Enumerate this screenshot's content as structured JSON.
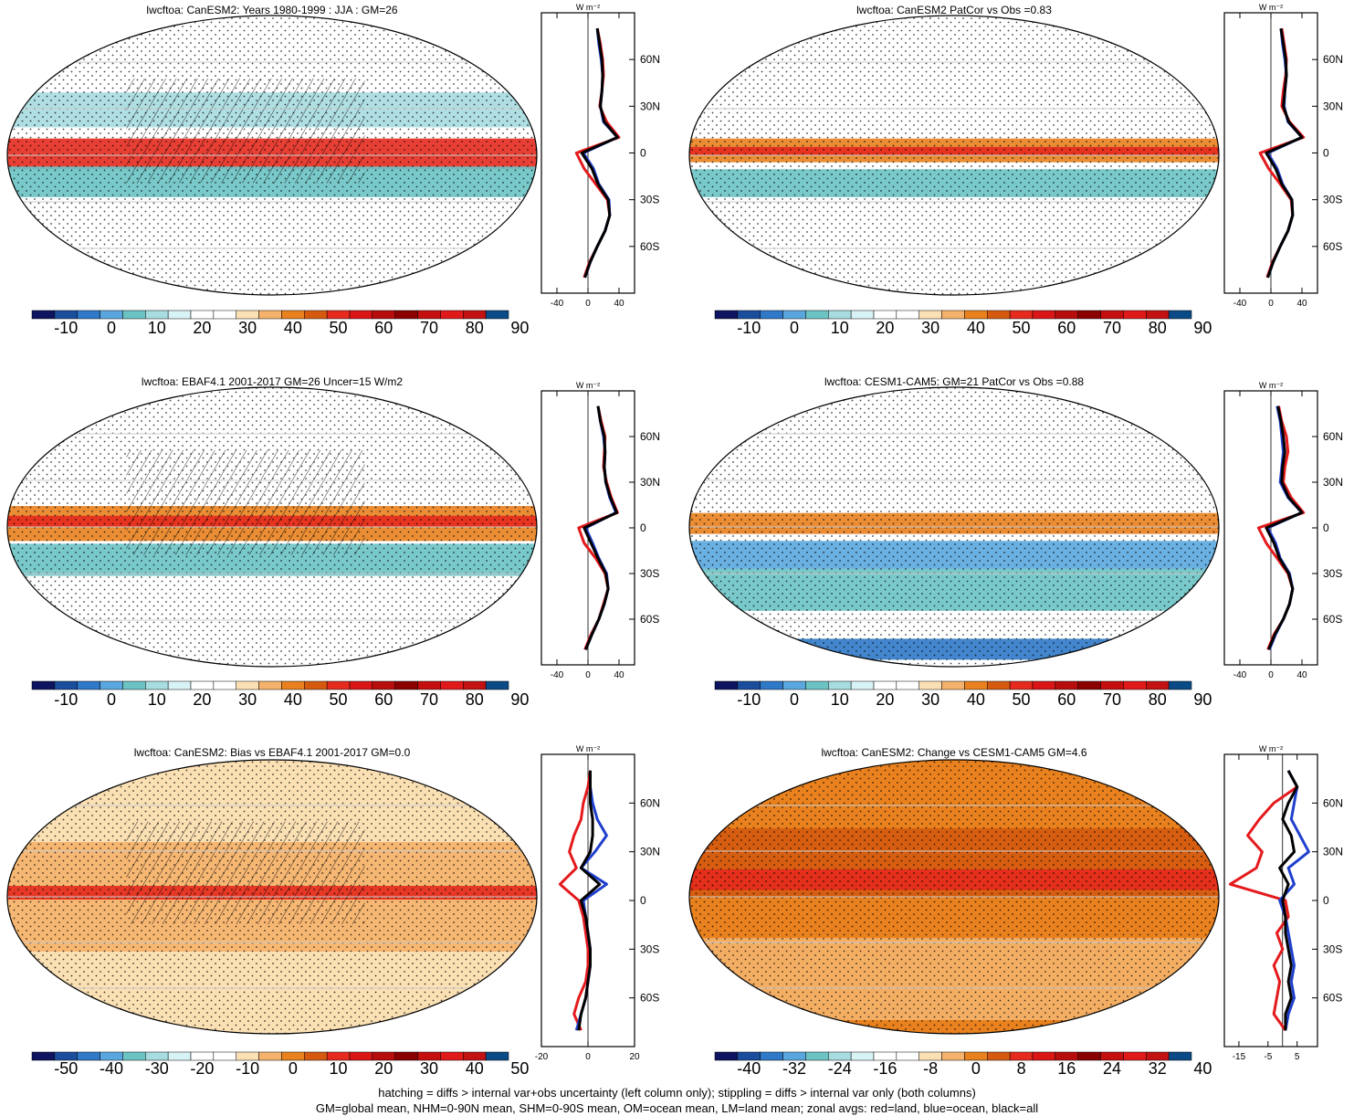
{
  "footer": {
    "line1": "hatching = diffs > internal var+obs uncertainty (left column only); stippling = diffs > internal var only (both columns)",
    "line2": "GM=global mean, NHM=0-90N mean, SHM=0-90S mean, OM=ocean mean, LM=land mean; zonal avgs: red=land, blue=ocean, black=all"
  },
  "colors": {
    "zonal_land": "#e41a1c",
    "zonal_ocean": "#1f3fcc",
    "zonal_all": "#000000",
    "palette": [
      "#0e1460",
      "#1a4e9c",
      "#2f79c8",
      "#5aa7df",
      "#6cc3c4",
      "#a7dce0",
      "#d8f3f5",
      "#ffffff",
      "#ffffff",
      "#fbe0b4",
      "#f5b26c",
      "#e8811e",
      "#d55a10",
      "#e62a1e",
      "#d91515",
      "#b80d0d",
      "#8a0000",
      "#c50f0f",
      "#e01919",
      "#c21212",
      "#0a4a86"
    ]
  },
  "chart_data": [
    {
      "type": "heatmap",
      "title": "lwcftoa: CanESM2: Years 1980-1999 : JJA : GM=26",
      "colorbar": {
        "ticks": [
          "-10",
          "0",
          "10",
          "20",
          "30",
          "40",
          "50",
          "60",
          "70",
          "80",
          "90"
        ]
      },
      "zonal_panel": {
        "units": "W m⁻²",
        "xticks": [
          "-40",
          "0",
          "40"
        ],
        "xlim": [
          -60,
          60
        ],
        "lat_ticks": [
          "60N",
          "30N",
          "0",
          "30S",
          "60S"
        ],
        "lat": [
          80,
          70,
          60,
          50,
          40,
          30,
          20,
          10,
          0,
          -10,
          -20,
          -30,
          -40,
          -50,
          -60,
          -70,
          -80
        ],
        "land": [
          12,
          16,
          19,
          20,
          18,
          15,
          24,
          40,
          -15,
          -5,
          10,
          25,
          28,
          22,
          12,
          2,
          -5
        ],
        "ocean": [
          12,
          14,
          17,
          19,
          18,
          16,
          20,
          38,
          -6,
          7,
          14,
          27,
          28,
          22,
          12,
          3,
          -4
        ],
        "all": [
          12,
          15,
          18,
          19,
          18,
          16,
          21,
          38,
          -8,
          5,
          13,
          26,
          28,
          22,
          12,
          3,
          -4
        ]
      },
      "hatching": true
    },
    {
      "type": "heatmap",
      "title": "lwcftoa: CanESM2 PatCor vs Obs =0.83",
      "colorbar": {
        "ticks": [
          "-10",
          "0",
          "10",
          "20",
          "30",
          "40",
          "50",
          "60",
          "70",
          "80",
          "90"
        ]
      },
      "zonal_panel": {
        "units": "W m⁻²",
        "xticks": [
          "-40",
          "0",
          "40"
        ],
        "xlim": [
          -60,
          60
        ],
        "lat_ticks": [
          "60N",
          "30N",
          "0",
          "30S",
          "60S"
        ],
        "lat": [
          80,
          70,
          60,
          50,
          40,
          30,
          20,
          10,
          0,
          -10,
          -20,
          -30,
          -40,
          -50,
          -60,
          -70,
          -80
        ],
        "land": [
          14,
          17,
          20,
          19,
          16,
          14,
          24,
          42,
          -14,
          -3,
          12,
          26,
          28,
          22,
          12,
          2,
          -5
        ],
        "ocean": [
          13,
          15,
          18,
          20,
          18,
          17,
          22,
          40,
          -4,
          8,
          15,
          27,
          28,
          22,
          12,
          3,
          -4
        ],
        "all": [
          13,
          16,
          19,
          20,
          18,
          16,
          23,
          40,
          -6,
          6,
          14,
          27,
          28,
          22,
          12,
          3,
          -4
        ]
      },
      "hatching": false
    },
    {
      "type": "heatmap",
      "title": "lwcftoa: EBAF4.1 2001-2017 GM=26 Uncer=15 W/m2",
      "colorbar": {
        "ticks": [
          "-10",
          "0",
          "10",
          "20",
          "30",
          "40",
          "50",
          "60",
          "70",
          "80",
          "90"
        ]
      },
      "zonal_panel": {
        "units": "W m⁻²",
        "xticks": [
          "-40",
          "0",
          "40"
        ],
        "xlim": [
          -60,
          60
        ],
        "lat_ticks": [
          "60N",
          "30N",
          "0",
          "30S",
          "60S"
        ],
        "lat": [
          80,
          70,
          60,
          50,
          40,
          30,
          20,
          10,
          0,
          -10,
          -20,
          -30,
          -40,
          -50,
          -60,
          -70,
          -80
        ],
        "land": [
          13,
          17,
          22,
          21,
          20,
          24,
          30,
          38,
          -12,
          -5,
          10,
          22,
          26,
          20,
          14,
          4,
          -4
        ],
        "ocean": [
          13,
          16,
          20,
          22,
          21,
          23,
          28,
          36,
          -3,
          6,
          14,
          24,
          26,
          21,
          14,
          5,
          -3
        ],
        "all": [
          13,
          16,
          21,
          22,
          21,
          23,
          29,
          37,
          -5,
          4,
          13,
          23,
          26,
          21,
          14,
          5,
          -3
        ]
      },
      "hatching": true
    },
    {
      "type": "heatmap",
      "title": "lwcftoa: CESM1-CAM5: GM=21 PatCor vs Obs =0.88",
      "colorbar": {
        "ticks": [
          "-10",
          "0",
          "10",
          "20",
          "30",
          "40",
          "50",
          "60",
          "70",
          "80",
          "90"
        ]
      },
      "zonal_panel": {
        "units": "W m⁻²",
        "xticks": [
          "-40",
          "0",
          "40"
        ],
        "xlim": [
          -60,
          60
        ],
        "lat_ticks": [
          "60N",
          "30N",
          "0",
          "30S",
          "60S"
        ],
        "lat": [
          80,
          70,
          60,
          50,
          40,
          30,
          20,
          10,
          0,
          -10,
          -20,
          -30,
          -40,
          -50,
          -60,
          -70,
          -80
        ],
        "land": [
          10,
          14,
          20,
          22,
          18,
          16,
          26,
          42,
          -16,
          -6,
          8,
          22,
          28,
          24,
          16,
          4,
          -4
        ],
        "ocean": [
          8,
          12,
          14,
          16,
          14,
          12,
          22,
          40,
          -4,
          6,
          12,
          24,
          28,
          24,
          16,
          6,
          -2
        ],
        "all": [
          9,
          13,
          16,
          18,
          15,
          14,
          23,
          40,
          -6,
          4,
          11,
          23,
          28,
          24,
          16,
          5,
          -3
        ]
      },
      "hatching": false
    },
    {
      "type": "heatmap",
      "title": "lwcftoa: CanESM2: Bias vs EBAF4.1 2001-2017 GM=0.0",
      "colorbar": {
        "ticks": [
          "-50",
          "-40",
          "-30",
          "-20",
          "-10",
          "0",
          "10",
          "20",
          "30",
          "40",
          "50"
        ]
      },
      "zonal_panel": {
        "units": "W m⁻²",
        "xticks": [
          "-20",
          "0",
          "20"
        ],
        "xlim": [
          -20,
          20
        ],
        "lat_ticks": [
          "60N",
          "30N",
          "0",
          "30S",
          "60S"
        ],
        "lat": [
          80,
          70,
          60,
          50,
          40,
          30,
          20,
          10,
          0,
          -10,
          -20,
          -30,
          -40,
          -50,
          -60,
          -70,
          -80
        ],
        "land": [
          1,
          0,
          -2,
          -3,
          -6,
          -8,
          -5,
          -12,
          -4,
          -2,
          -1,
          0,
          0,
          -1,
          -4,
          -6,
          -3
        ],
        "ocean": [
          1,
          1,
          2,
          4,
          8,
          3,
          -3,
          8,
          -2,
          -1,
          0,
          1,
          1,
          0,
          -1,
          -3,
          -5
        ],
        "all": [
          1,
          1,
          1,
          2,
          2,
          1,
          -3,
          5,
          -3,
          -1,
          0,
          1,
          1,
          0,
          -1,
          -3,
          -4
        ]
      },
      "hatching": true
    },
    {
      "type": "heatmap",
      "title": "lwcftoa: CanESM2: Change vs CESM1-CAM5 GM=4.6",
      "colorbar": {
        "ticks": [
          "-40",
          "-32",
          "-24",
          "-16",
          "-8",
          "0",
          "8",
          "16",
          "24",
          "32",
          "40"
        ]
      },
      "zonal_panel": {
        "units": "W m⁻²",
        "xticks": [
          "-15",
          "-5",
          "5"
        ],
        "xlim": [
          -20,
          12
        ],
        "lat_ticks": [
          "60N",
          "30N",
          "0",
          "30S",
          "60S"
        ],
        "lat": [
          80,
          70,
          60,
          50,
          40,
          30,
          20,
          10,
          0,
          -10,
          -20,
          -30,
          -40,
          -50,
          -60,
          -70,
          -80
        ],
        "land": [
          2,
          5,
          -3,
          -8,
          -12,
          -7,
          -9,
          -18,
          1,
          2,
          -2,
          0,
          -3,
          -1,
          -2,
          -3,
          1
        ],
        "ocean": [
          2,
          5,
          4,
          3,
          6,
          9,
          2,
          4,
          -1,
          1,
          2,
          3,
          4,
          3,
          4,
          2,
          1
        ],
        "all": [
          2,
          5,
          2,
          0,
          3,
          4,
          -1,
          2,
          0,
          1,
          1,
          2,
          3,
          2,
          3,
          1,
          1
        ]
      },
      "hatching": false
    }
  ]
}
